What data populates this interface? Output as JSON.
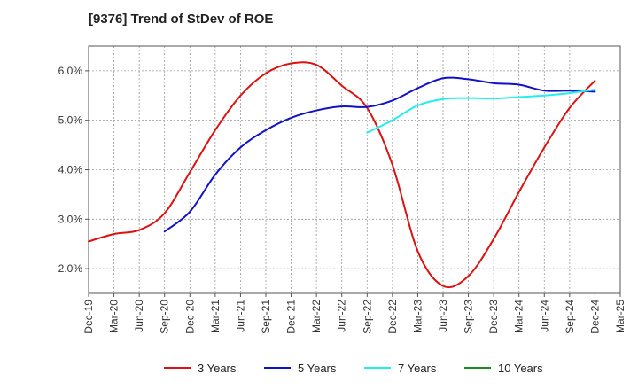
{
  "chart_data": {
    "type": "line",
    "title": "[9376]  Trend of StDev of ROE",
    "xlabel": "",
    "ylabel": "",
    "ylim": [
      1.5,
      6.5
    ],
    "y_ticks": [
      2.0,
      3.0,
      4.0,
      5.0,
      6.0
    ],
    "y_tick_labels": [
      "2.0%",
      "3.0%",
      "4.0%",
      "5.0%",
      "6.0%"
    ],
    "x_tick_labels": [
      "Dec-19",
      "Mar-20",
      "Jun-20",
      "Sep-20",
      "Dec-20",
      "Mar-21",
      "Jun-21",
      "Sep-21",
      "Dec-21",
      "Mar-22",
      "Jun-22",
      "Sep-22",
      "Dec-22",
      "Mar-23",
      "Jun-23",
      "Sep-23",
      "Dec-23",
      "Mar-24",
      "Jun-24",
      "Sep-24",
      "Dec-24",
      "Mar-25"
    ],
    "grid": true,
    "legend_position": "bottom",
    "series": [
      {
        "name": "3 Years",
        "color": "#dd1111",
        "x": [
          "Dec-19",
          "Mar-20",
          "Jun-20",
          "Sep-20",
          "Dec-20",
          "Mar-21",
          "Jun-21",
          "Sep-21",
          "Dec-21",
          "Mar-22",
          "Jun-22",
          "Sep-22",
          "Dec-22",
          "Mar-23",
          "Jun-23",
          "Sep-23",
          "Dec-23",
          "Mar-24",
          "Jun-24",
          "Sep-24",
          "Dec-24"
        ],
        "values": [
          2.55,
          2.7,
          2.78,
          3.12,
          3.95,
          4.8,
          5.5,
          5.95,
          6.15,
          6.12,
          5.7,
          5.25,
          4.1,
          2.35,
          1.65,
          1.85,
          2.6,
          3.55,
          4.45,
          5.25,
          5.8
        ]
      },
      {
        "name": "5 Years",
        "color": "#1111cc",
        "x": [
          "Sep-20",
          "Dec-20",
          "Mar-21",
          "Jun-21",
          "Sep-21",
          "Dec-21",
          "Mar-22",
          "Jun-22",
          "Sep-22",
          "Dec-22",
          "Mar-23",
          "Jun-23",
          "Sep-23",
          "Dec-23",
          "Mar-24",
          "Jun-24",
          "Sep-24",
          "Dec-24"
        ],
        "values": [
          2.75,
          3.15,
          3.9,
          4.45,
          4.8,
          5.05,
          5.2,
          5.28,
          5.27,
          5.4,
          5.65,
          5.85,
          5.83,
          5.75,
          5.72,
          5.6,
          5.6,
          5.58
        ]
      },
      {
        "name": "7 Years",
        "color": "#22eeee",
        "x": [
          "Sep-22",
          "Dec-22",
          "Mar-23",
          "Jun-23",
          "Sep-23",
          "Dec-23",
          "Mar-24",
          "Jun-24",
          "Sep-24",
          "Dec-24"
        ],
        "values": [
          4.75,
          5.0,
          5.3,
          5.43,
          5.45,
          5.44,
          5.47,
          5.5,
          5.55,
          5.62
        ]
      },
      {
        "name": "10 Years",
        "color": "#228822",
        "x": [],
        "values": []
      }
    ]
  }
}
